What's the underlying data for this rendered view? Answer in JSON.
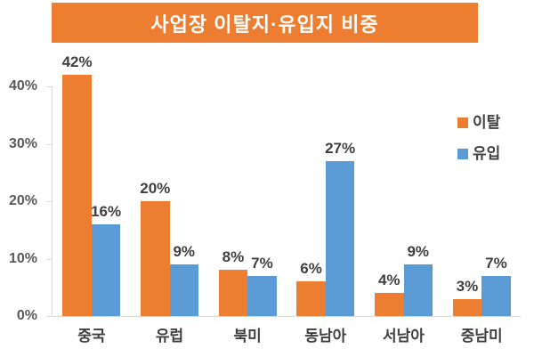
{
  "title": "사업장 이탈지·유입지 비중",
  "colors": {
    "banner_bg": "#ED7D31",
    "banner_text": "#FFFFFF",
    "axis_line": "#D9D9D9",
    "tick_label": "#595959",
    "data_label": "#404040",
    "series_leave": "#ED7D31",
    "series_inflow": "#5B9BD5"
  },
  "legend": {
    "items": [
      {
        "label": "이탈",
        "color": "#ED7D31"
      },
      {
        "label": "유입",
        "color": "#5B9BD5"
      }
    ]
  },
  "chart_data": {
    "type": "bar",
    "title": "사업장 이탈지·유입지 비중",
    "categories": [
      "중국",
      "유럽",
      "북미",
      "동남아",
      "서남아",
      "중남미"
    ],
    "series": [
      {
        "name": "이탈",
        "color": "#ED7D31",
        "values": [
          42,
          20,
          8,
          6,
          4,
          3
        ]
      },
      {
        "name": "유입",
        "color": "#5B9BD5",
        "values": [
          16,
          9,
          7,
          27,
          9,
          7
        ]
      }
    ],
    "value_suffix": "%",
    "xlabel": "",
    "ylabel": "",
    "ylim": [
      0,
      45
    ],
    "y_ticks": [
      0,
      10,
      20,
      30,
      40
    ],
    "y_tick_labels": [
      "0%",
      "10%",
      "20%",
      "30%",
      "40%"
    ],
    "grid": false,
    "legend_position": "right",
    "data_labels": true
  }
}
